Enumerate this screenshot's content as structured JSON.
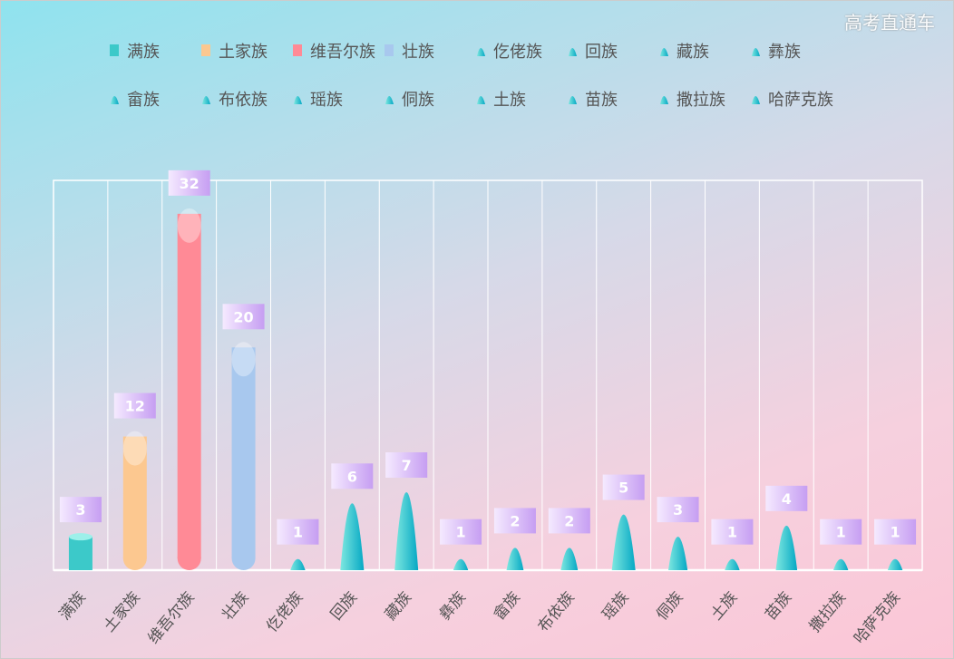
{
  "chart_data": {
    "type": "bar",
    "categories": [
      "满族",
      "土家族",
      "维吾尔族",
      "壮族",
      "仡佬族",
      "回族",
      "藏族",
      "彝族",
      "畲族",
      "布依族",
      "瑶族",
      "侗族",
      "土族",
      "苗族",
      "撒拉族",
      "哈萨克族"
    ],
    "values": [
      3,
      12,
      32,
      20,
      1,
      6,
      7,
      1,
      2,
      2,
      5,
      3,
      1,
      4,
      1,
      1
    ],
    "ylim": [
      0,
      35
    ],
    "grid": "vertical",
    "legend": "top",
    "colors": {
      "满族": "#3cc9c9",
      "土家族": "#fcc890",
      "维吾尔族": "#ff8a96",
      "壮族": "#a8c8ee",
      "others": "#0fb0c0",
      "label_bg": "#c9a4f0"
    }
  },
  "watermark": "高考直通车"
}
